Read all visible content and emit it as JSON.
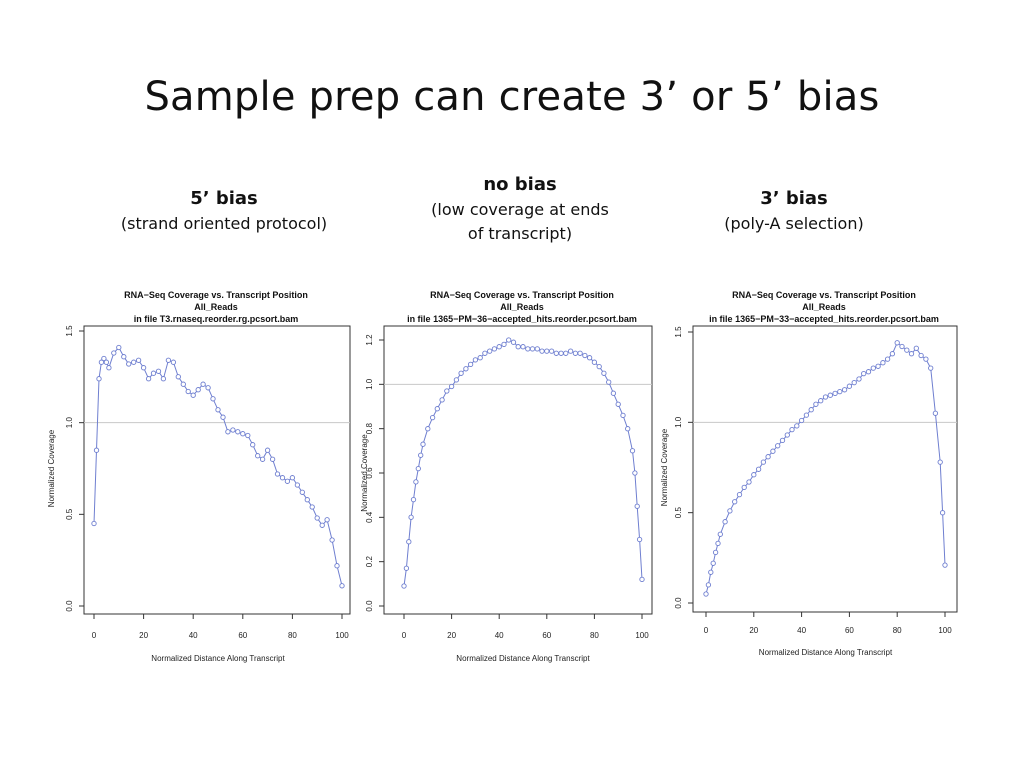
{
  "slide": {
    "title": "Sample prep can create 3’ or 5’ bias"
  },
  "captions": [
    {
      "title": "5’ bias",
      "sub1": "(strand oriented protocol)",
      "sub2": ""
    },
    {
      "title": "no bias",
      "sub1": "(low coverage at ends",
      "sub2": "of  transcript)"
    },
    {
      "title": "3’ bias",
      "sub1": "(poly-A selection)",
      "sub2": ""
    }
  ],
  "colors": {
    "series": "#6f7fd0",
    "refline": "#c8c8c8",
    "axis": "#333333"
  },
  "chart_data": [
    {
      "type": "line",
      "title": "RNA−Seq Coverage vs. Transcript Position",
      "subtitle1": "All_Reads",
      "subtitle2": "in file T3.rnaseq.reorder.rg.pcsort.bam",
      "xlabel": "Normalized Distance Along Transcript",
      "ylabel": "Normalized Coverage",
      "xlim": [
        0,
        100
      ],
      "ylim": [
        0,
        1.5
      ],
      "xticks": [
        "0",
        "20",
        "40",
        "60",
        "80",
        "100"
      ],
      "yticks": [
        "0.0",
        "0.5",
        "1.0",
        "1.5"
      ],
      "reference_line": 1.0,
      "marker": "open-circle",
      "series": [
        {
          "x": [
            0,
            1,
            2,
            3,
            4,
            5,
            6,
            8,
            10,
            12,
            14,
            16,
            18,
            20,
            22,
            24,
            26,
            28,
            30,
            32,
            34,
            36,
            38,
            40,
            42,
            44,
            46,
            48,
            50,
            52,
            54,
            56,
            58,
            60,
            62,
            64,
            66,
            68,
            70,
            72,
            74,
            76,
            78,
            80,
            82,
            84,
            86,
            88,
            90,
            92,
            94,
            96,
            98,
            100
          ],
          "y": [
            0.45,
            0.85,
            1.24,
            1.33,
            1.35,
            1.33,
            1.3,
            1.38,
            1.41,
            1.36,
            1.32,
            1.33,
            1.34,
            1.3,
            1.24,
            1.27,
            1.28,
            1.24,
            1.34,
            1.33,
            1.25,
            1.21,
            1.17,
            1.15,
            1.18,
            1.21,
            1.19,
            1.13,
            1.07,
            1.03,
            0.95,
            0.96,
            0.95,
            0.94,
            0.93,
            0.88,
            0.82,
            0.8,
            0.85,
            0.8,
            0.72,
            0.7,
            0.68,
            0.7,
            0.66,
            0.62,
            0.58,
            0.54,
            0.48,
            0.44,
            0.47,
            0.36,
            0.22,
            0.11
          ]
        }
      ]
    },
    {
      "type": "line",
      "title": "RNA−Seq Coverage vs. Transcript Position",
      "subtitle1": "All_Reads",
      "subtitle2": "in file 1365−PM−36−accepted_hits.reorder.pcsort.bam",
      "xlabel": "Normalized Distance Along Transcript",
      "ylabel": "Normalized Coverage",
      "xlim": [
        0,
        100
      ],
      "ylim": [
        0,
        1.2
      ],
      "xticks": [
        "0",
        "20",
        "40",
        "60",
        "80",
        "100"
      ],
      "yticks": [
        "0.0",
        "0.2",
        "0.4",
        "0.6",
        "0.8",
        "1.0",
        "1.2"
      ],
      "reference_line": 1.0,
      "marker": "open-circle",
      "series": [
        {
          "x": [
            0,
            1,
            2,
            3,
            4,
            5,
            6,
            7,
            8,
            10,
            12,
            14,
            16,
            18,
            20,
            22,
            24,
            26,
            28,
            30,
            32,
            34,
            36,
            38,
            40,
            42,
            44,
            46,
            48,
            50,
            52,
            54,
            56,
            58,
            60,
            62,
            64,
            66,
            68,
            70,
            72,
            74,
            76,
            78,
            80,
            82,
            84,
            86,
            88,
            90,
            92,
            94,
            96,
            97,
            98,
            99,
            100
          ],
          "y": [
            0.09,
            0.17,
            0.29,
            0.4,
            0.48,
            0.56,
            0.62,
            0.68,
            0.73,
            0.8,
            0.85,
            0.89,
            0.93,
            0.97,
            0.99,
            1.02,
            1.05,
            1.07,
            1.09,
            1.11,
            1.12,
            1.14,
            1.15,
            1.16,
            1.17,
            1.18,
            1.2,
            1.19,
            1.17,
            1.17,
            1.16,
            1.16,
            1.16,
            1.15,
            1.15,
            1.15,
            1.14,
            1.14,
            1.14,
            1.15,
            1.14,
            1.14,
            1.13,
            1.12,
            1.1,
            1.08,
            1.05,
            1.01,
            0.96,
            0.91,
            0.86,
            0.8,
            0.7,
            0.6,
            0.45,
            0.3,
            0.12
          ]
        }
      ]
    },
    {
      "type": "line",
      "title": "RNA−Seq Coverage vs. Transcript Position",
      "subtitle1": "All_Reads",
      "subtitle2": "in file 1365−PM−33−accepted_hits.reorder.pcsort.bam",
      "xlabel": "Normalized Distance Along Transcript",
      "ylabel": "Normalized Coverage",
      "xlim": [
        0,
        100
      ],
      "ylim": [
        0,
        1.5
      ],
      "xticks": [
        "0",
        "20",
        "40",
        "60",
        "80",
        "100"
      ],
      "yticks": [
        "0.0",
        "0.5",
        "1.0",
        "1.5"
      ],
      "reference_line": 1.0,
      "marker": "open-circle",
      "series": [
        {
          "x": [
            0,
            1,
            2,
            3,
            4,
            5,
            6,
            8,
            10,
            12,
            14,
            16,
            18,
            20,
            22,
            24,
            26,
            28,
            30,
            32,
            34,
            36,
            38,
            40,
            42,
            44,
            46,
            48,
            50,
            52,
            54,
            56,
            58,
            60,
            62,
            64,
            66,
            68,
            70,
            72,
            74,
            76,
            78,
            80,
            82,
            84,
            86,
            88,
            90,
            92,
            94,
            96,
            98,
            99,
            100
          ],
          "y": [
            0.05,
            0.1,
            0.17,
            0.22,
            0.28,
            0.33,
            0.38,
            0.45,
            0.51,
            0.56,
            0.6,
            0.64,
            0.67,
            0.71,
            0.74,
            0.78,
            0.81,
            0.84,
            0.87,
            0.9,
            0.93,
            0.96,
            0.98,
            1.01,
            1.04,
            1.07,
            1.1,
            1.12,
            1.14,
            1.15,
            1.16,
            1.17,
            1.18,
            1.2,
            1.22,
            1.24,
            1.27,
            1.28,
            1.3,
            1.31,
            1.33,
            1.35,
            1.38,
            1.44,
            1.42,
            1.4,
            1.38,
            1.41,
            1.37,
            1.35,
            1.3,
            1.05,
            0.78,
            0.5,
            0.21
          ]
        }
      ]
    }
  ]
}
